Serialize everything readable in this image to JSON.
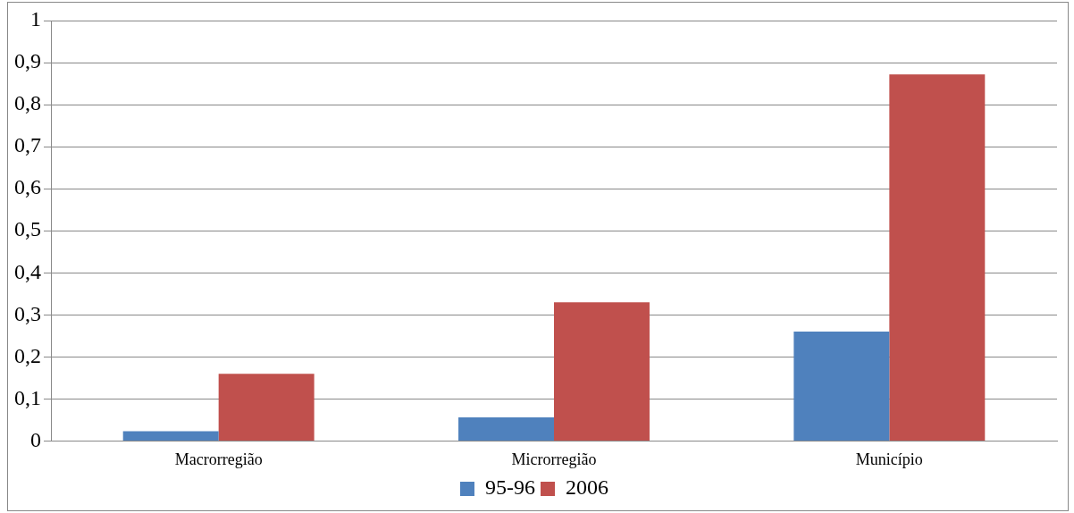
{
  "chart_data": {
    "type": "bar",
    "categories": [
      "Macrorregião",
      "Microrregião",
      "Município"
    ],
    "series": [
      {
        "name": "95-96",
        "color": "#4f81bd",
        "values": [
          0.023,
          0.056,
          0.26
        ]
      },
      {
        "name": "2006",
        "color": "#c0504d",
        "values": [
          0.16,
          0.33,
          0.872
        ]
      }
    ],
    "ylim": [
      0,
      1
    ],
    "yticks": [
      {
        "value": 0,
        "label": "0"
      },
      {
        "value": 0.1,
        "label": "0,1"
      },
      {
        "value": 0.2,
        "label": "0,2"
      },
      {
        "value": 0.3,
        "label": "0,3"
      },
      {
        "value": 0.4,
        "label": "0,4"
      },
      {
        "value": 0.5,
        "label": "0,5"
      },
      {
        "value": 0.6,
        "label": "0,6"
      },
      {
        "value": 0.7,
        "label": "0,7"
      },
      {
        "value": 0.8,
        "label": "0,8"
      },
      {
        "value": 0.9,
        "label": "0,9"
      },
      {
        "value": 1,
        "label": "1"
      }
    ],
    "grid": "y",
    "legend": "bottom"
  }
}
